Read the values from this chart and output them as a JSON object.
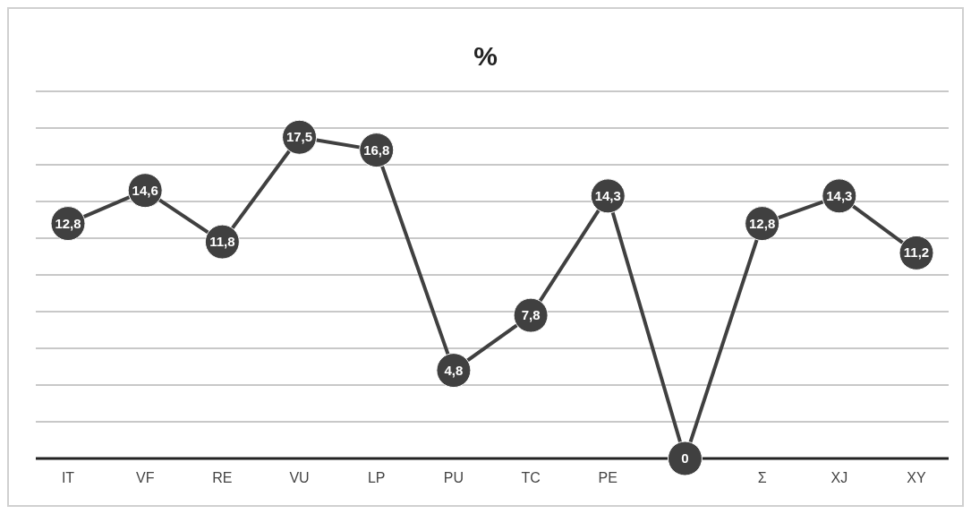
{
  "chart_data": {
    "type": "line",
    "title": "%",
    "categories": [
      "IT",
      "VF",
      "RE",
      "VU",
      "LP",
      "PU",
      "TC",
      "PE",
      null,
      "Σ",
      "XJ",
      "XY"
    ],
    "series": [
      {
        "color": "#404040",
        "values": [
          12.8,
          14.6,
          11.8,
          17.5,
          16.8,
          4.8,
          7.8,
          14.3,
          0,
          12.8,
          14.3,
          11.2
        ],
        "value_labels": [
          "12,8",
          "14,6",
          "11,8",
          "17,5",
          "16,8",
          "4,8",
          "7,8",
          "14,3",
          "0",
          "12,8",
          "14,3",
          "11,2"
        ]
      }
    ],
    "grid": "y",
    "tick_labels": "x",
    "marker": "circle",
    "line_style": "solid"
  }
}
